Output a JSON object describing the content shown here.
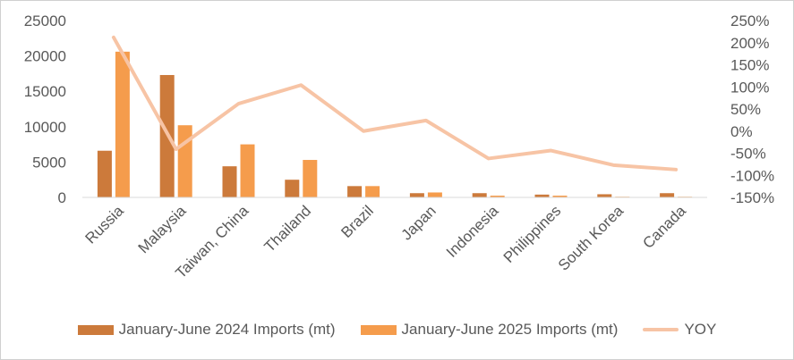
{
  "chart_data": {
    "type": "bar",
    "categories": [
      "Russia",
      "Malaysia",
      "Taiwan, China",
      "Thailand",
      "Brazil",
      "Japan",
      "Indonesia",
      "Philippines",
      "South Korea",
      "Canada"
    ],
    "series": [
      {
        "name": "January-June 2024 Imports (mt)",
        "type": "bar",
        "axis": "left",
        "color": "#cc7a3b",
        "values": [
          6600,
          17300,
          4400,
          2500,
          1600,
          600,
          600,
          400,
          450,
          600
        ]
      },
      {
        "name": "January-June 2025 Imports (mt)",
        "type": "bar",
        "axis": "left",
        "color": "#f59c4c",
        "values": [
          20600,
          10200,
          7500,
          5300,
          1600,
          700,
          250,
          250,
          100,
          100
        ]
      },
      {
        "name": "YOY",
        "type": "line",
        "axis": "right",
        "color": "#f7c4a5",
        "values": [
          2.12,
          -0.41,
          0.62,
          1.04,
          0.0,
          0.24,
          -0.62,
          -0.44,
          -0.77,
          -0.87
        ]
      }
    ],
    "y_left": {
      "range": [
        0,
        25000
      ],
      "ticks": [
        0,
        5000,
        10000,
        15000,
        20000,
        25000
      ],
      "tick_labels": [
        "0",
        "5000",
        "10000",
        "15000",
        "20000",
        "25000"
      ]
    },
    "y_right": {
      "range": [
        -1.5,
        2.5
      ],
      "ticks": [
        -1.5,
        -1.0,
        -0.5,
        0.0,
        0.5,
        1.0,
        1.5,
        2.0,
        2.5
      ],
      "tick_labels": [
        "-150%",
        "-100%",
        "-50%",
        "0%",
        "50%",
        "100%",
        "150%",
        "200%",
        "250%"
      ]
    },
    "grid": false,
    "legend_position": "bottom"
  }
}
